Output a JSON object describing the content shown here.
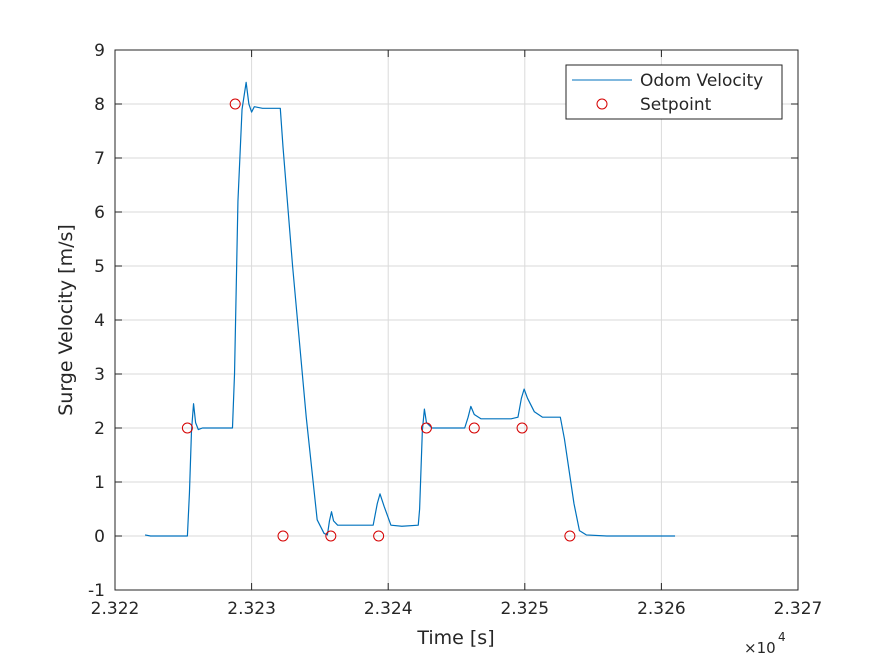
{
  "chart_data": {
    "type": "line",
    "title": "",
    "xlabel": "Time [s]",
    "ylabel": "Surge Velocity [m/s]",
    "x_exponent_label": "×10",
    "x_exponent_power": "4",
    "x_scale": 10000,
    "xlim": [
      23220,
      23270
    ],
    "ylim": [
      -1,
      9
    ],
    "xticks": [
      23220,
      23230,
      23240,
      23250,
      23260,
      23270
    ],
    "xtick_labels": [
      "2.322",
      "2.323",
      "2.324",
      "2.325",
      "2.326",
      "2.327"
    ],
    "yticks": [
      -1,
      0,
      1,
      2,
      3,
      4,
      5,
      6,
      7,
      8,
      9
    ],
    "ytick_labels": [
      "-1",
      "0",
      "1",
      "2",
      "3",
      "4",
      "5",
      "6",
      "7",
      "8",
      "9"
    ],
    "grid": true,
    "legend_position": "top-right",
    "colors": {
      "odom": "#0072BD",
      "setpoint": "#D50000",
      "grid": "#DADADA",
      "axis": "#262626"
    },
    "series": [
      {
        "name": "Odom Velocity",
        "kind": "line",
        "points": [
          [
            23222.2,
            0.02
          ],
          [
            23222.6,
            0.0
          ],
          [
            23224.0,
            0.0
          ],
          [
            23225.3,
            0.0
          ],
          [
            23225.45,
            0.8
          ],
          [
            23225.6,
            1.95
          ],
          [
            23225.75,
            2.45
          ],
          [
            23225.9,
            2.1
          ],
          [
            23226.1,
            1.97
          ],
          [
            23226.4,
            2.0
          ],
          [
            23227.5,
            2.0
          ],
          [
            23228.6,
            2.0
          ],
          [
            23228.75,
            3.0
          ],
          [
            23229.0,
            6.2
          ],
          [
            23229.3,
            7.9
          ],
          [
            23229.6,
            8.4
          ],
          [
            23229.8,
            8.0
          ],
          [
            23230.0,
            7.85
          ],
          [
            23230.2,
            7.95
          ],
          [
            23230.8,
            7.92
          ],
          [
            23231.5,
            7.92
          ],
          [
            23232.1,
            7.92
          ],
          [
            23232.3,
            7.2
          ],
          [
            23233.0,
            5.0
          ],
          [
            23234.0,
            2.2
          ],
          [
            23234.8,
            0.3
          ],
          [
            23235.3,
            0.05
          ],
          [
            23235.55,
            0.02
          ],
          [
            23235.7,
            0.28
          ],
          [
            23235.85,
            0.45
          ],
          [
            23236.0,
            0.28
          ],
          [
            23236.3,
            0.2
          ],
          [
            23237.5,
            0.2
          ],
          [
            23238.9,
            0.2
          ],
          [
            23239.2,
            0.6
          ],
          [
            23239.4,
            0.78
          ],
          [
            23239.7,
            0.55
          ],
          [
            23240.2,
            0.2
          ],
          [
            23241.0,
            0.18
          ],
          [
            23242.2,
            0.2
          ],
          [
            23242.3,
            0.5
          ],
          [
            23242.5,
            1.95
          ],
          [
            23242.65,
            2.35
          ],
          [
            23242.8,
            2.1
          ],
          [
            23243.2,
            2.0
          ],
          [
            23245.6,
            2.0
          ],
          [
            23245.85,
            2.2
          ],
          [
            23246.05,
            2.4
          ],
          [
            23246.3,
            2.25
          ],
          [
            23246.8,
            2.17
          ],
          [
            23249.0,
            2.17
          ],
          [
            23249.5,
            2.2
          ],
          [
            23249.75,
            2.55
          ],
          [
            23249.95,
            2.72
          ],
          [
            23250.2,
            2.55
          ],
          [
            23250.7,
            2.3
          ],
          [
            23251.3,
            2.2
          ],
          [
            23252.6,
            2.2
          ],
          [
            23252.9,
            1.8
          ],
          [
            23253.6,
            0.6
          ],
          [
            23254.0,
            0.1
          ],
          [
            23254.5,
            0.02
          ],
          [
            23256.0,
            0.0
          ],
          [
            23258.0,
            0.0
          ],
          [
            23261.0,
            0.0
          ]
        ]
      },
      {
        "name": "Setpoint",
        "kind": "marker",
        "marker": "circle",
        "points": [
          [
            23225.3,
            2
          ],
          [
            23228.8,
            8
          ],
          [
            23232.3,
            0
          ],
          [
            23235.8,
            0
          ],
          [
            23239.3,
            0
          ],
          [
            23242.8,
            2
          ],
          [
            23246.3,
            2
          ],
          [
            23249.8,
            2
          ],
          [
            23253.3,
            0
          ]
        ]
      }
    ]
  }
}
